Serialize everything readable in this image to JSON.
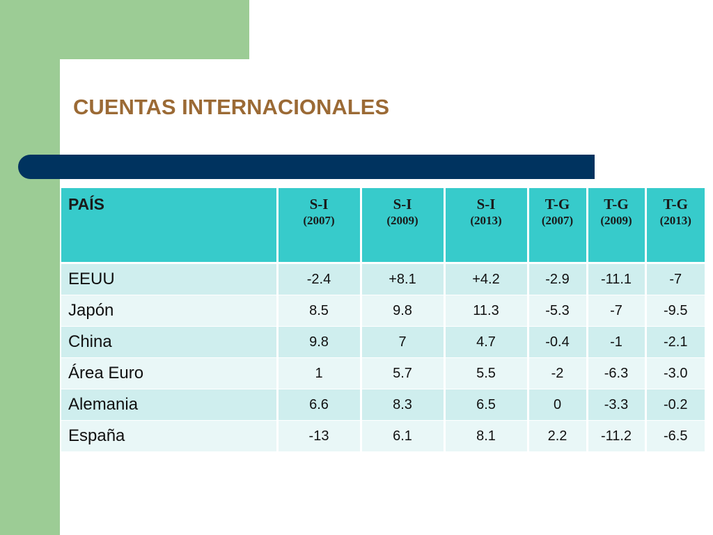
{
  "slide": {
    "title": "CUENTAS INTERNACIONALES",
    "colors": {
      "green_accent": "#9ccc95",
      "title_brown": "#9b6a35",
      "navy_rule": "#00335f",
      "header_teal": "#37cbcb",
      "row_light": "#cfeeee",
      "row_lighter": "#e9f7f7"
    }
  },
  "table": {
    "country_header": "PAÍS",
    "columns": [
      {
        "main": "S-I",
        "sub": "(2007)"
      },
      {
        "main": "S-I",
        "sub": "(2009)"
      },
      {
        "main": "S-I",
        "sub": "(2013)"
      },
      {
        "main": "T-G",
        "sub": "(2007)"
      },
      {
        "main": "T-G",
        "sub": "(2009)"
      },
      {
        "main": "T-G",
        "sub": "(2013)"
      }
    ],
    "rows": [
      {
        "country": "EEUU",
        "values": [
          "-2.4",
          "+8.1",
          "+4.2",
          "-2.9",
          "-11.1",
          "-7"
        ]
      },
      {
        "country": "Japón",
        "values": [
          "8.5",
          "9.8",
          "11.3",
          "-5.3",
          "-7",
          "-9.5"
        ]
      },
      {
        "country": "China",
        "values": [
          "9.8",
          "7",
          "4.7",
          "-0.4",
          "-1",
          "-2.1"
        ]
      },
      {
        "country": "Área Euro",
        "values": [
          "1",
          "5.7",
          "5.5",
          "-2",
          "-6.3",
          "-3.0"
        ]
      },
      {
        "country": "Alemania",
        "values": [
          "6.6",
          "8.3",
          "6.5",
          "0",
          "-3.3",
          "-0.2"
        ]
      },
      {
        "country": "España",
        "values": [
          "-13",
          "6.1",
          "8.1",
          "2.2",
          "-11.2",
          "-6.5"
        ]
      }
    ]
  }
}
